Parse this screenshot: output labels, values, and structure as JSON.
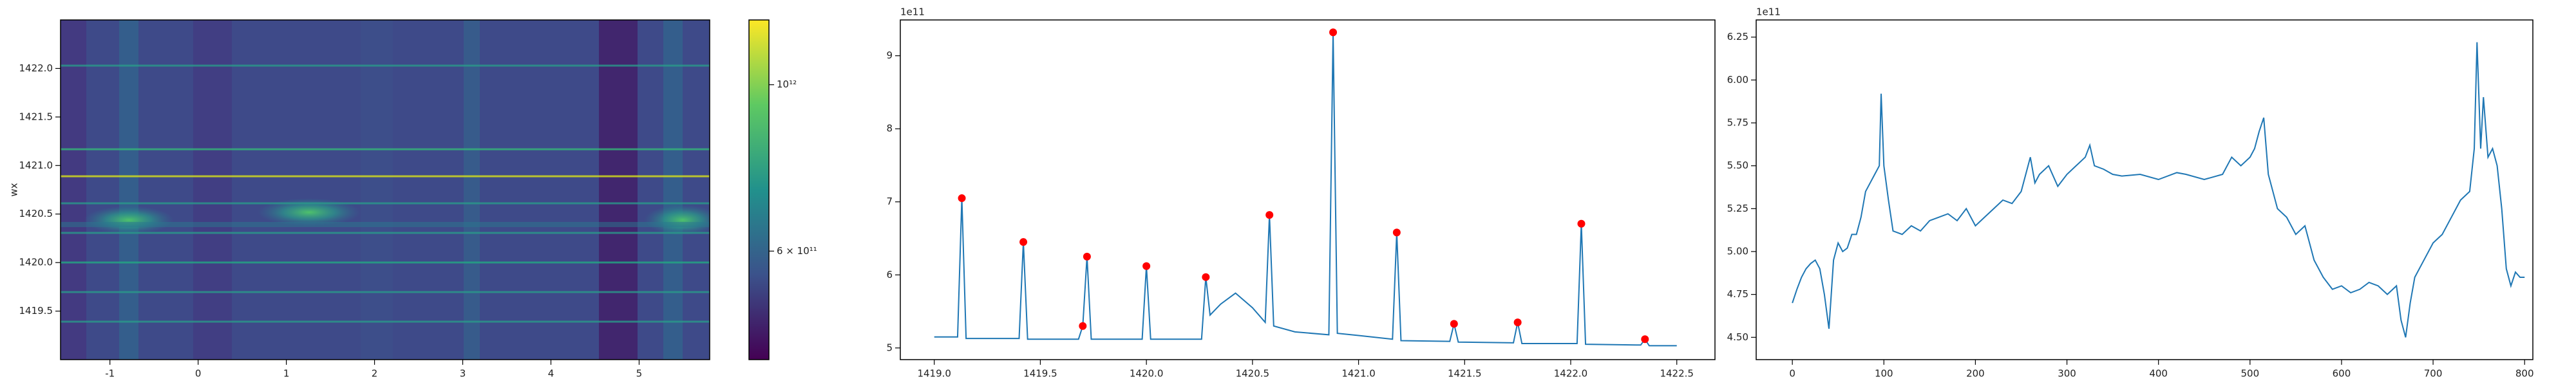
{
  "chart_data": [
    {
      "type": "heatmap",
      "ylabel": "wx",
      "xlim": [
        -1.56,
        5.8
      ],
      "ylim": [
        1419.0,
        1422.5
      ],
      "xticks": [
        -1,
        0,
        1,
        2,
        3,
        4,
        5
      ],
      "yticks": [
        1419.5,
        {
          "value": 1420.0,
          "label": "1420.0"
        },
        1420.5,
        {
          "value": 1421.0,
          "label": "1421.0"
        },
        1421.5,
        {
          "value": 1422.0,
          "label": "1422.0"
        }
      ],
      "colorbar": {
        "scale": "log",
        "lim": [
          430000000000,
          1220000000000
        ],
        "ticks": [
          {
            "value": 600000000000,
            "label": "6 × 10¹¹"
          },
          {
            "value": 1000000000000,
            "label": "10¹²"
          }
        ]
      }
    },
    {
      "type": "line",
      "color": "#1f77b4",
      "y_offset_label": "1e11",
      "xlim": [
        1418.84,
        1422.68
      ],
      "ylim": [
        4.84,
        9.49
      ],
      "xticks": [
        {
          "value": 1419.0,
          "label": "1419.0"
        },
        1419.5,
        {
          "value": 1420.0,
          "label": "1420.0"
        },
        1420.5,
        {
          "value": 1421.0,
          "label": "1421.0"
        },
        1421.5,
        {
          "value": 1422.0,
          "label": "1422.0"
        },
        1422.5
      ],
      "yticks": [
        5,
        6,
        7,
        8,
        9
      ],
      "x": [
        1419.0,
        1419.11,
        1419.13,
        1419.15,
        1419.4,
        1419.42,
        1419.44,
        1419.68,
        1419.7,
        1419.72,
        1419.74,
        1419.98,
        1420.0,
        1420.02,
        1420.26,
        1420.28,
        1420.3,
        1420.35,
        1420.42,
        1420.5,
        1420.56,
        1420.58,
        1420.6,
        1420.7,
        1420.86,
        1420.88,
        1420.9,
        1421.0,
        1421.16,
        1421.18,
        1421.2,
        1421.43,
        1421.45,
        1421.47,
        1421.73,
        1421.75,
        1421.77,
        1422.03,
        1422.05,
        1422.07,
        1422.33,
        1422.35,
        1422.37,
        1422.5
      ],
      "values": [
        5.15,
        5.15,
        7.05,
        5.13,
        5.13,
        6.45,
        5.12,
        5.12,
        5.3,
        6.25,
        5.12,
        5.12,
        6.12,
        5.12,
        5.12,
        5.97,
        5.45,
        5.6,
        5.75,
        5.55,
        5.35,
        6.82,
        5.3,
        5.22,
        5.18,
        9.32,
        5.2,
        5.17,
        5.12,
        6.58,
        5.1,
        5.09,
        5.33,
        5.08,
        5.07,
        5.35,
        5.06,
        5.06,
        6.7,
        5.05,
        5.04,
        5.12,
        5.03,
        5.03
      ],
      "peaks": {
        "color": "red",
        "x": [
          1419.13,
          1419.42,
          1419.7,
          1419.72,
          1420.0,
          1420.28,
          1420.58,
          1420.88,
          1421.18,
          1421.45,
          1421.75,
          1422.05,
          1422.35
        ],
        "values": [
          7.05,
          6.45,
          5.3,
          6.25,
          6.12,
          5.97,
          6.82,
          9.32,
          6.58,
          5.33,
          5.35,
          6.7,
          5.12
        ]
      }
    },
    {
      "type": "line",
      "color": "#1f77b4",
      "y_offset_label": "1e11",
      "xlim": [
        -39.5,
        809
      ],
      "ylim": [
        4.37,
        6.35
      ],
      "xticks": [
        0,
        100,
        200,
        300,
        400,
        500,
        600,
        700,
        800
      ],
      "yticks": [
        {
          "value": 4.5,
          "label": "4.50"
        },
        {
          "value": 4.75,
          "label": "4.75"
        },
        {
          "value": 5.0,
          "label": "5.00"
        },
        {
          "value": 5.25,
          "label": "5.25"
        },
        {
          "value": 5.5,
          "label": "5.50"
        },
        {
          "value": 5.75,
          "label": "5.75"
        },
        {
          "value": 6.0,
          "label": "6.00"
        },
        {
          "value": 6.25,
          "label": "6.25"
        }
      ],
      "x": [
        0,
        5,
        10,
        15,
        20,
        25,
        30,
        35,
        40,
        45,
        50,
        55,
        60,
        65,
        70,
        75,
        80,
        85,
        90,
        95,
        97,
        100,
        105,
        110,
        120,
        130,
        140,
        150,
        160,
        170,
        180,
        190,
        200,
        210,
        220,
        230,
        240,
        250,
        260,
        265,
        270,
        280,
        290,
        300,
        310,
        320,
        325,
        330,
        340,
        350,
        360,
        380,
        400,
        420,
        430,
        450,
        470,
        480,
        490,
        500,
        505,
        510,
        515,
        520,
        530,
        540,
        550,
        560,
        570,
        580,
        590,
        600,
        610,
        620,
        630,
        640,
        650,
        660,
        665,
        670,
        675,
        680,
        690,
        700,
        710,
        720,
        730,
        740,
        745,
        748,
        752,
        755,
        760,
        765,
        770,
        775,
        780,
        785,
        790,
        795,
        800
      ],
      "values": [
        4.7,
        4.78,
        4.85,
        4.9,
        4.93,
        4.95,
        4.9,
        4.75,
        4.55,
        4.95,
        5.05,
        5.0,
        5.02,
        5.1,
        5.1,
        5.2,
        5.35,
        5.4,
        5.45,
        5.5,
        5.92,
        5.5,
        5.3,
        5.12,
        5.1,
        5.15,
        5.12,
        5.18,
        5.2,
        5.22,
        5.18,
        5.25,
        5.15,
        5.2,
        5.25,
        5.3,
        5.28,
        5.35,
        5.55,
        5.4,
        5.45,
        5.5,
        5.38,
        5.45,
        5.5,
        5.55,
        5.62,
        5.5,
        5.48,
        5.45,
        5.44,
        5.45,
        5.42,
        5.46,
        5.45,
        5.42,
        5.45,
        5.55,
        5.5,
        5.55,
        5.6,
        5.7,
        5.78,
        5.45,
        5.25,
        5.2,
        5.1,
        5.15,
        4.95,
        4.85,
        4.78,
        4.8,
        4.76,
        4.78,
        4.82,
        4.8,
        4.75,
        4.8,
        4.6,
        4.5,
        4.7,
        4.85,
        4.95,
        5.05,
        5.1,
        5.2,
        5.3,
        5.35,
        5.6,
        6.22,
        5.6,
        5.9,
        5.55,
        5.6,
        5.5,
        5.25,
        4.9,
        4.8,
        4.88,
        4.85,
        4.85
      ]
    }
  ]
}
